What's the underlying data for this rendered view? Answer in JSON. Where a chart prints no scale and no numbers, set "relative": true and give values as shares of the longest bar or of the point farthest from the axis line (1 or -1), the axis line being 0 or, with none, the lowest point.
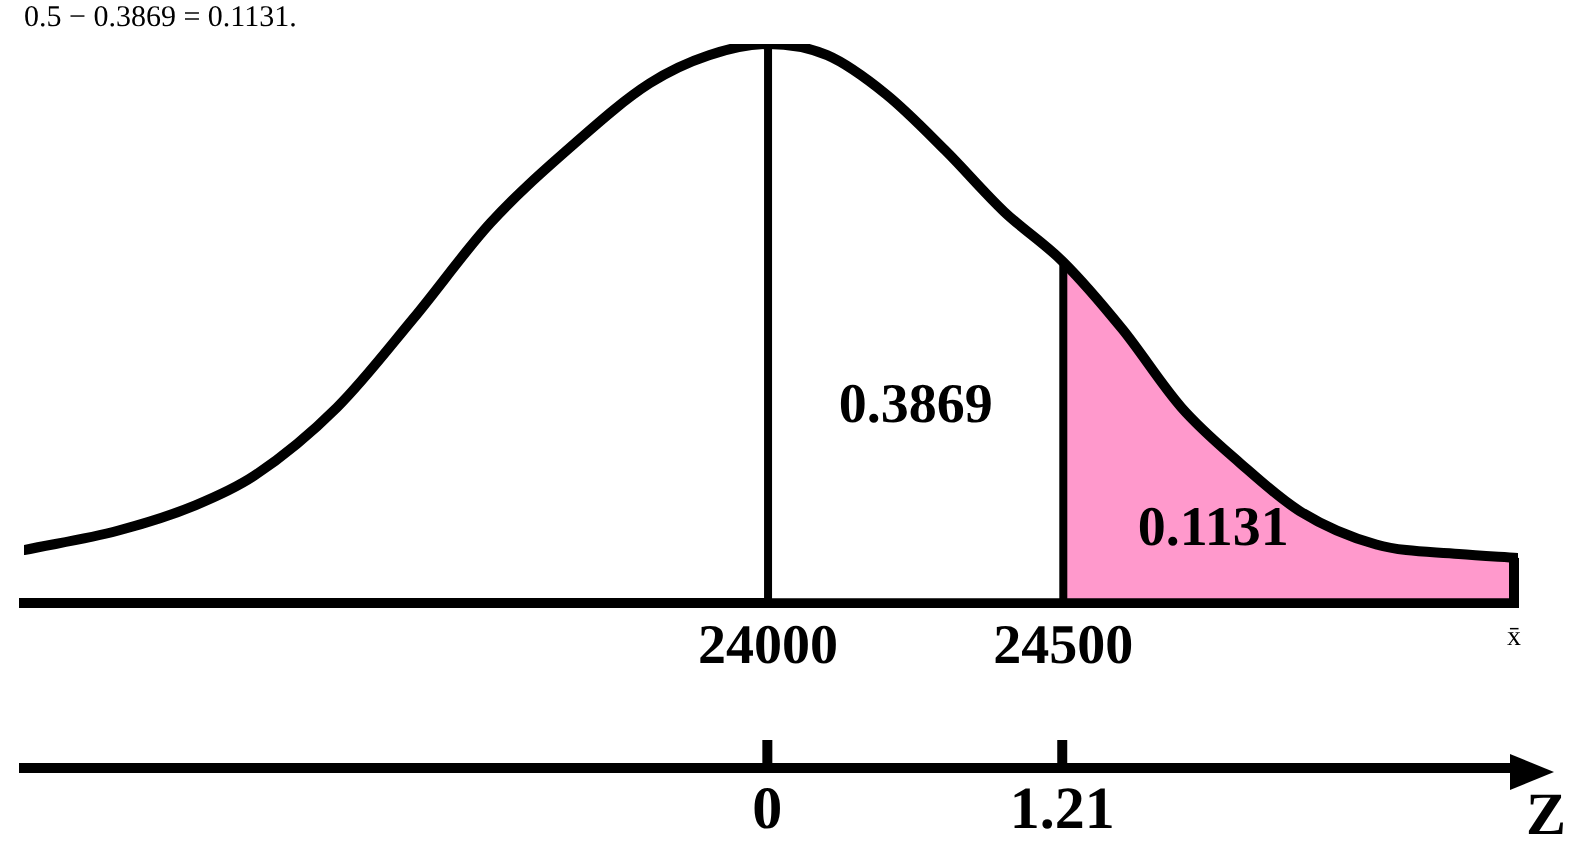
{
  "chart_data": {
    "type": "line",
    "title": "0.5 − 0.3869 = 0.1131.",
    "relative": true,
    "marker": "none",
    "grid": false,
    "legend": false,
    "x": [
      22740,
      22900,
      23030,
      23130,
      23270,
      23400,
      23530,
      23670,
      23800,
      23900,
      24000,
      24100,
      24200,
      24300,
      24400,
      24500,
      24600,
      24700,
      24800,
      24900,
      25030,
      25170,
      25270
    ],
    "series": [
      {
        "color": "#000000",
        "values": [
          0.095,
          0.13,
          0.175,
          0.228,
          0.35,
          0.51,
          0.68,
          0.82,
          0.93,
          0.98,
          1,
          0.98,
          0.91,
          0.81,
          0.7,
          0.61,
          0.49,
          0.35,
          0.25,
          0.165,
          0.105,
          0.088,
          0.081
        ]
      }
    ],
    "xlim": [
      22740,
      25270
    ],
    "xticks": [
      24000,
      24500
    ],
    "xlabel": "x̄",
    "x2lim": [
      -3.05,
      3.08
    ],
    "x2ticks": [
      0,
      1.21
    ],
    "x2label": "Z",
    "ref_lines": [
      {
        "axis": "x",
        "value": 24000,
        "color": "#000000"
      },
      {
        "axis": "x",
        "value": 24500,
        "color": "#000000"
      }
    ],
    "bands": [
      {
        "axis": "x",
        "from": 24000,
        "to": 24500,
        "color": "#ffffff",
        "label": "0.3869"
      },
      {
        "axis": "x",
        "from": 24500,
        "to": 25270,
        "color": "#ff99cc",
        "label": "0.1131"
      }
    ]
  }
}
